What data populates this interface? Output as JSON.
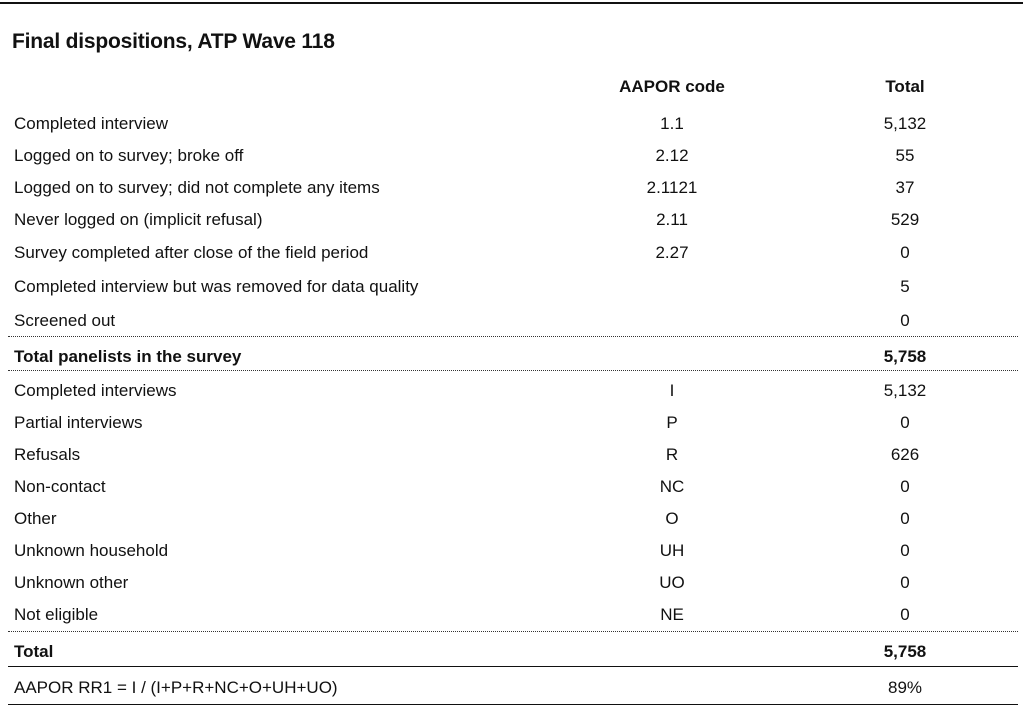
{
  "title": "Final dispositions, ATP Wave 118",
  "columns": {
    "code": "AAPOR code",
    "total": "Total"
  },
  "rows_group1": [
    {
      "label": "Completed interview",
      "code": "1.1",
      "total": "5,132"
    },
    {
      "label": "Logged on to survey; broke off",
      "code": "2.12",
      "total": "55"
    },
    {
      "label": "Logged on to survey; did not complete any items",
      "code": "2.1121",
      "total": "37"
    },
    {
      "label": "Never logged on (implicit refusal)",
      "code": "2.11",
      "total": "529"
    },
    {
      "label": "Survey completed after close of the field period",
      "code": "2.27",
      "total": "0"
    },
    {
      "label": "Completed interview but was removed for data quality",
      "code": "",
      "total": "5"
    },
    {
      "label": "Screened out",
      "code": "",
      "total": "0"
    }
  ],
  "subtotal": {
    "label": "Total panelists in the survey",
    "total": "5,758"
  },
  "rows_group2": [
    {
      "label": "Completed interviews",
      "code": "I",
      "total": "5,132"
    },
    {
      "label": "Partial interviews",
      "code": "P",
      "total": "0"
    },
    {
      "label": "Refusals",
      "code": "R",
      "total": "626"
    },
    {
      "label": "Non-contact",
      "code": "NC",
      "total": "0"
    },
    {
      "label": "Other",
      "code": "O",
      "total": "0"
    },
    {
      "label": "Unknown household",
      "code": "UH",
      "total": "0"
    },
    {
      "label": "Unknown other",
      "code": "UO",
      "total": "0"
    },
    {
      "label": "Not eligible",
      "code": "NE",
      "total": "0"
    }
  ],
  "grand_total": {
    "label": "Total",
    "total": "5,758"
  },
  "response_rate": {
    "label": "AAPOR RR1 = I / (I+P+R+NC+O+UH+UO)",
    "total": "89%"
  }
}
